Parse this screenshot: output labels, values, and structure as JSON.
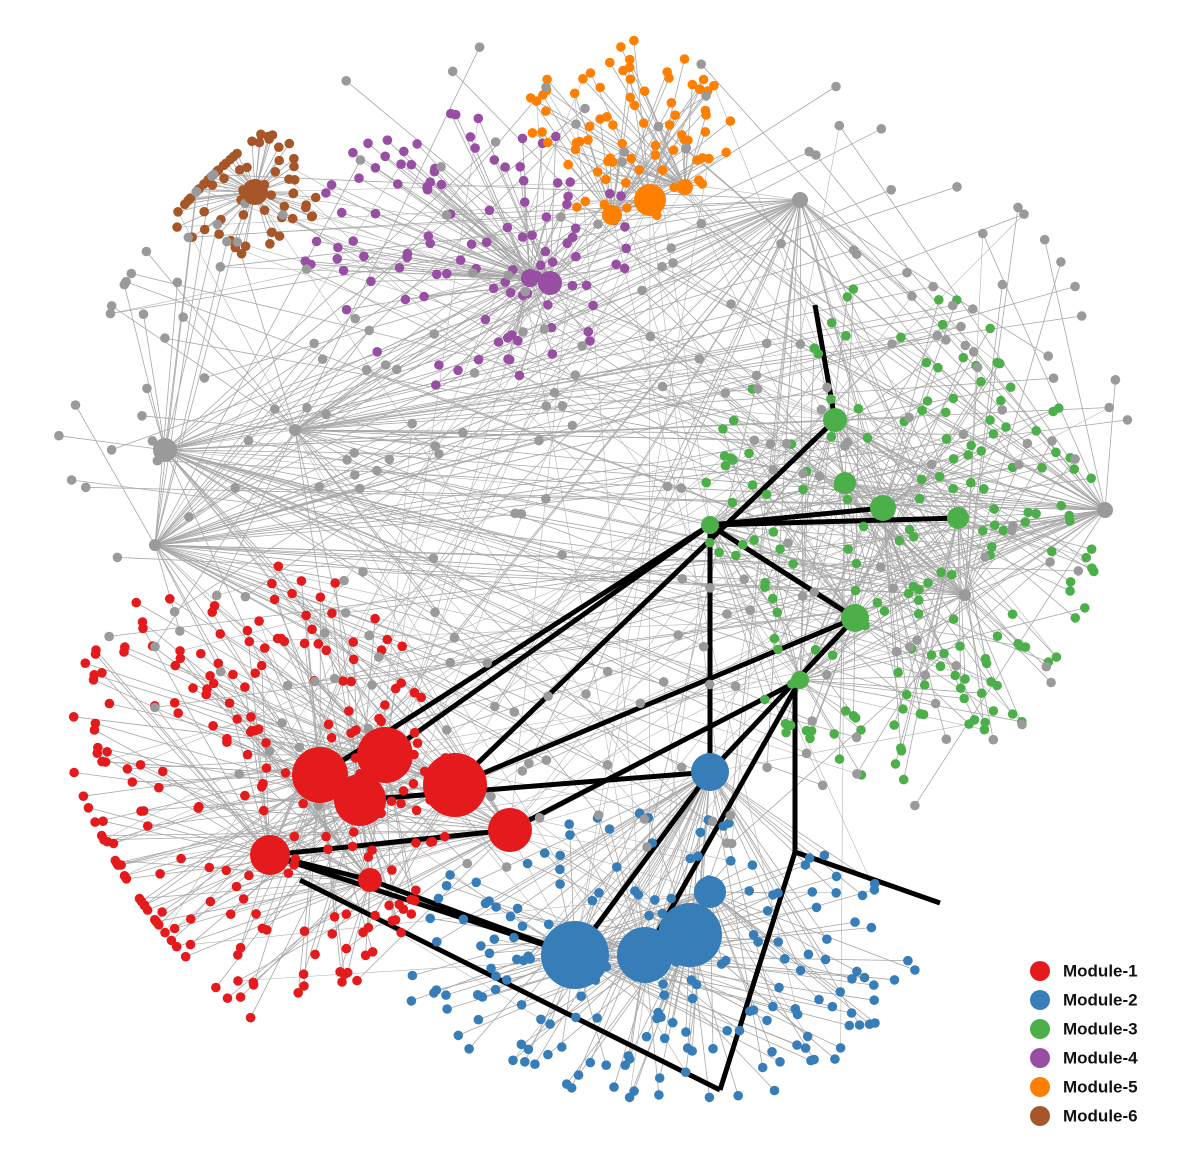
{
  "legend": {
    "items": [
      {
        "label": "Module-1",
        "color": "#e41a1c"
      },
      {
        "label": "Module-2",
        "color": "#377eb8"
      },
      {
        "label": "Module-3",
        "color": "#4daf4a"
      },
      {
        "label": "Module-4",
        "color": "#984ea3"
      },
      {
        "label": "Module-5",
        "color": "#ff7f00"
      },
      {
        "label": "Module-6",
        "color": "#a65628"
      }
    ]
  }
}
